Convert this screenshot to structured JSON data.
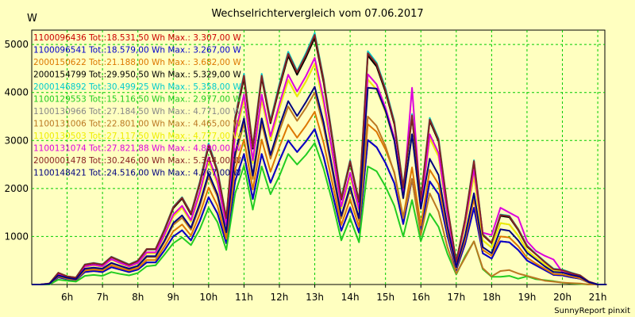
{
  "chart_data": {
    "type": "line",
    "title": "Wechselrichtervergleich vom 07.06.2017",
    "ylabel": "W",
    "xlabel": "",
    "credit": "SunnyReport pinxit",
    "xlim": [
      5.0,
      21.2
    ],
    "ylim": [
      0,
      5300
    ],
    "yticks": [
      1000,
      2000,
      3000,
      4000,
      5000
    ],
    "x_ticks": [
      {
        "pos": 6,
        "label": "6h"
      },
      {
        "pos": 7,
        "label": "7h"
      },
      {
        "pos": 8,
        "label": "8h"
      },
      {
        "pos": 9,
        "label": "9h"
      },
      {
        "pos": 10,
        "label": "10h"
      },
      {
        "pos": 11,
        "label": "11h"
      },
      {
        "pos": 12,
        "label": "12h"
      },
      {
        "pos": 13,
        "label": "13h"
      },
      {
        "pos": 14,
        "label": "14h"
      },
      {
        "pos": 15,
        "label": "15h"
      },
      {
        "pos": 16,
        "label": "16h"
      },
      {
        "pos": 17,
        "label": "17h"
      },
      {
        "pos": 18,
        "label": "18h"
      },
      {
        "pos": 19,
        "label": "19h"
      },
      {
        "pos": 20,
        "label": "20h"
      },
      {
        "pos": 21,
        "label": "21h"
      }
    ],
    "grid": true,
    "legend_position": "top-left",
    "x": [
      5.0,
      5.25,
      5.5,
      5.75,
      6.0,
      6.25,
      6.5,
      6.75,
      7.0,
      7.25,
      7.5,
      7.75,
      8.0,
      8.25,
      8.5,
      8.75,
      9.0,
      9.25,
      9.5,
      9.75,
      10.0,
      10.25,
      10.5,
      10.75,
      11.0,
      11.25,
      11.5,
      11.75,
      12.0,
      12.25,
      12.5,
      12.75,
      13.0,
      13.25,
      13.5,
      13.75,
      14.0,
      14.25,
      14.5,
      14.75,
      15.0,
      15.25,
      15.5,
      15.75,
      16.0,
      16.25,
      16.5,
      16.75,
      17.0,
      17.25,
      17.5,
      17.75,
      18.0,
      18.25,
      18.5,
      18.75,
      19.0,
      19.25,
      19.5,
      19.75,
      20.0,
      20.25,
      20.5,
      20.75,
      21.0,
      21.25
    ],
    "series": [
      {
        "name": "1100096436",
        "legend": "1100096436 Tot.:18.531,50 Wh Max.: 3.307,00 W",
        "color": "#cc0000",
        "values": [
          0,
          0,
          10,
          150,
          110,
          90,
          260,
          280,
          260,
          360,
          310,
          260,
          310,
          460,
          460,
          710,
          1000,
          1130,
          920,
          1320,
          1820,
          1480,
          860,
          2160,
          2720,
          1780,
          2720,
          2120,
          2580,
          3000,
          2760,
          2980,
          3240,
          2660,
          1900,
          1120,
          1600,
          1080,
          3010,
          2860,
          2530,
          2110,
          1260,
          2200,
          1110,
          2150,
          1880,
          1010,
          300,
          850,
          1600,
          650,
          540,
          900,
          880,
          720,
          500,
          400,
          300,
          200,
          190,
          150,
          120,
          40,
          0,
          0
        ]
      },
      {
        "name": "1100096541",
        "legend": "1100096541 Tot.:18.579,00 Wh Max.: 3.267,00 W",
        "color": "#0000cc",
        "values": [
          0,
          0,
          10,
          150,
          110,
          90,
          260,
          280,
          260,
          360,
          310,
          260,
          310,
          460,
          460,
          710,
          1000,
          1130,
          920,
          1320,
          1820,
          1480,
          860,
          2160,
          2720,
          1780,
          2720,
          2120,
          2580,
          3000,
          2760,
          2980,
          3240,
          2660,
          1900,
          1120,
          1600,
          1080,
          3010,
          2860,
          2530,
          2110,
          1260,
          2200,
          1110,
          2150,
          1880,
          1010,
          300,
          850,
          1600,
          650,
          540,
          900,
          880,
          720,
          500,
          400,
          300,
          200,
          190,
          150,
          120,
          40,
          0,
          0
        ]
      },
      {
        "name": "2000150622",
        "legend": "2000150622 Tot.:21.188,00 Wh Max.: 3.682,00 W",
        "color": "#dd7700",
        "values": [
          0,
          0,
          10,
          170,
          120,
          100,
          290,
          310,
          290,
          400,
          340,
          290,
          340,
          510,
          510,
          790,
          1110,
          1250,
          1020,
          1470,
          2020,
          1640,
          950,
          2400,
          3020,
          1980,
          3020,
          2350,
          2870,
          3330,
          3060,
          3310,
          3600,
          2950,
          2110,
          1240,
          1780,
          1200,
          3340,
          3180,
          2810,
          2340,
          1400,
          2440,
          1230,
          2390,
          2090,
          1120,
          330,
          940,
          1780,
          720,
          600,
          1000,
          980,
          800,
          560,
          440,
          330,
          220,
          210,
          170,
          130,
          40,
          0,
          0
        ]
      },
      {
        "name": "2000154799",
        "legend": "2000154799 Tot.:29.950,50 Wh Max.: 5.329,00 W",
        "color": "#000000",
        "values": [
          0,
          0,
          20,
          240,
          170,
          140,
          410,
          440,
          410,
          570,
          490,
          410,
          490,
          730,
          730,
          1130,
          1590,
          1790,
          1460,
          2100,
          2880,
          2350,
          1360,
          3430,
          4310,
          2830,
          4310,
          3360,
          4100,
          4760,
          4370,
          4730,
          5140,
          4210,
          3010,
          1770,
          2540,
          1710,
          4770,
          4540,
          4010,
          3340,
          2000,
          3490,
          1760,
          3410,
          2980,
          1600,
          470,
          1350,
          2540,
          1030,
          860,
          1430,
          1400,
          1140,
          790,
          630,
          470,
          320,
          300,
          240,
          190,
          60,
          0,
          0
        ]
      },
      {
        "name": "2000146892",
        "legend": "2000146892 Tot.:30.499,25 Wh Max.: 5.358,00 W",
        "color": "#00cccc",
        "values": [
          0,
          0,
          20,
          245,
          170,
          145,
          420,
          450,
          420,
          580,
          500,
          420,
          500,
          740,
          740,
          1150,
          1620,
          1820,
          1490,
          2140,
          2940,
          2390,
          1390,
          3500,
          4390,
          2880,
          4390,
          3420,
          4180,
          4850,
          4450,
          4820,
          5240,
          4290,
          3070,
          1810,
          2590,
          1740,
          4860,
          4620,
          4090,
          3400,
          2040,
          3550,
          1790,
          3470,
          3040,
          1630,
          480,
          1370,
          2590,
          1050,
          870,
          1460,
          1430,
          1160,
          810,
          640,
          480,
          330,
          310,
          250,
          190,
          60,
          0,
          0
        ]
      },
      {
        "name": "1100129553",
        "legend": "1100129553 Tot.:15.116,50 Wh Max.: 2.977,00 W",
        "color": "#22cc22",
        "values": [
          0,
          0,
          0,
          100,
          80,
          60,
          180,
          200,
          180,
          260,
          220,
          190,
          240,
          380,
          400,
          620,
          860,
          980,
          820,
          1150,
          1600,
          1300,
          720,
          1900,
          2480,
          1560,
          2460,
          1880,
          2260,
          2720,
          2500,
          2700,
          2950,
          2410,
          1720,
          920,
          1380,
          880,
          2460,
          2360,
          2040,
          1640,
          1000,
          1760,
          900,
          1480,
          1200,
          640,
          210,
          590,
          900,
          320,
          160,
          160,
          180,
          120,
          170,
          110,
          90,
          70,
          40,
          20,
          10,
          0,
          0,
          0
        ]
      },
      {
        "name": "1100130966",
        "legend": "1100130966 Tot.:27.184,50 Wh Max.: 4.771,00 W",
        "color": "#888888",
        "values": [
          0,
          0,
          20,
          220,
          150,
          130,
          370,
          400,
          370,
          520,
          440,
          370,
          440,
          650,
          650,
          1010,
          1420,
          1600,
          1310,
          1880,
          2580,
          2100,
          1220,
          3070,
          3860,
          2530,
          3860,
          3010,
          3670,
          4260,
          3920,
          4230,
          4600,
          3770,
          2700,
          1590,
          2270,
          1530,
          4270,
          4060,
          3590,
          2990,
          1790,
          3120,
          1570,
          3050,
          2670,
          1430,
          420,
          1210,
          2270,
          920,
          770,
          1280,
          1250,
          1020,
          710,
          560,
          420,
          280,
          270,
          210,
          170,
          60,
          0,
          0
        ]
      },
      {
        "name": "1100131006",
        "legend": "1100131006 Tot.:22.801,00 Wh Max.: 4.465,00 W",
        "color": "#bb7722",
        "values": [
          0,
          0,
          15,
          180,
          130,
          110,
          320,
          340,
          320,
          440,
          380,
          320,
          380,
          570,
          570,
          880,
          1240,
          1390,
          1140,
          1630,
          2250,
          1830,
          1060,
          2670,
          3360,
          2200,
          3360,
          2620,
          3200,
          3710,
          3410,
          3680,
          4000,
          3280,
          2350,
          1380,
          1980,
          1330,
          3500,
          3300,
          2880,
          2320,
          1380,
          2200,
          1030,
          1900,
          1520,
          780,
          230,
          560,
          900,
          340,
          170,
          280,
          300,
          230,
          180,
          130,
          80,
          60,
          40,
          30,
          20,
          0,
          0,
          0
        ]
      },
      {
        "name": "1100130503",
        "legend": "1100130503 Tot.:27.117,50 Wh Max.: 4.777,00 W",
        "color": "#eeee00",
        "values": [
          0,
          0,
          20,
          220,
          150,
          130,
          370,
          400,
          370,
          520,
          440,
          370,
          440,
          650,
          650,
          1010,
          1420,
          1600,
          1310,
          1880,
          2580,
          2100,
          1220,
          3070,
          3860,
          2530,
          3860,
          3010,
          3670,
          4260,
          3920,
          4230,
          4600,
          3770,
          2700,
          1590,
          2270,
          1530,
          4270,
          4060,
          3590,
          2990,
          1790,
          3120,
          1570,
          3050,
          2670,
          1430,
          420,
          1210,
          2270,
          920,
          770,
          1280,
          1250,
          1020,
          710,
          560,
          420,
          280,
          270,
          210,
          170,
          60,
          0,
          0
        ]
      },
      {
        "name": "1100131074",
        "legend": "1100131074 Tot.:27.821,88 Wh Max.: 4.890,00 W",
        "color": "#dd00dd",
        "values": [
          0,
          0,
          20,
          220,
          160,
          130,
          380,
          410,
          380,
          530,
          450,
          380,
          450,
          670,
          670,
          1040,
          1460,
          1640,
          1340,
          1930,
          2650,
          2150,
          1250,
          3150,
          3960,
          2590,
          3960,
          3090,
          3760,
          4370,
          4020,
          4340,
          4720,
          3860,
          2760,
          1630,
          2330,
          1570,
          4380,
          4170,
          3680,
          3060,
          1840,
          4100,
          1610,
          3130,
          2740,
          1470,
          430,
          1300,
          2400,
          1080,
          1030,
          1600,
          1500,
          1400,
          900,
          700,
          600,
          520,
          260,
          210,
          170,
          60,
          0,
          0
        ]
      },
      {
        "name": "2000001478",
        "legend": "2000001478 Tot.:30.246,00 Wh Max.: 5.344,00 W",
        "color": "#882222",
        "values": [
          0,
          0,
          20,
          245,
          170,
          145,
          415,
          445,
          415,
          575,
          495,
          415,
          495,
          740,
          740,
          1140,
          1610,
          1810,
          1480,
          2120,
          2910,
          2370,
          1380,
          3470,
          4350,
          2860,
          4350,
          3390,
          4140,
          4810,
          4420,
          4780,
          5200,
          4260,
          3040,
          1790,
          2570,
          1730,
          4820,
          4590,
          4050,
          3370,
          2020,
          3520,
          1780,
          3440,
          3010,
          1620,
          470,
          1360,
          2570,
          1040,
          870,
          1450,
          1420,
          1150,
          800,
          630,
          470,
          320,
          300,
          240,
          190,
          60,
          0,
          0
        ]
      },
      {
        "name": "1100148421",
        "legend": "1100148421 Tot.:24.516,00 Wh Max.: 4.767,00 W",
        "color": "#000080",
        "values": [
          0,
          0,
          15,
          190,
          140,
          110,
          330,
          350,
          330,
          450,
          390,
          330,
          390,
          590,
          590,
          910,
          1280,
          1440,
          1180,
          1690,
          2320,
          1880,
          1090,
          2750,
          3460,
          2270,
          3460,
          2700,
          3300,
          3820,
          3510,
          3800,
          4120,
          3380,
          2420,
          1430,
          2040,
          1380,
          4100,
          4080,
          3620,
          3000,
          1800,
          3130,
          1580,
          2620,
          2280,
          1210,
          360,
          1020,
          1900,
          780,
          650,
          1150,
          1120,
          920,
          660,
          520,
          380,
          260,
          250,
          200,
          160,
          50,
          0,
          0
        ]
      }
    ]
  }
}
